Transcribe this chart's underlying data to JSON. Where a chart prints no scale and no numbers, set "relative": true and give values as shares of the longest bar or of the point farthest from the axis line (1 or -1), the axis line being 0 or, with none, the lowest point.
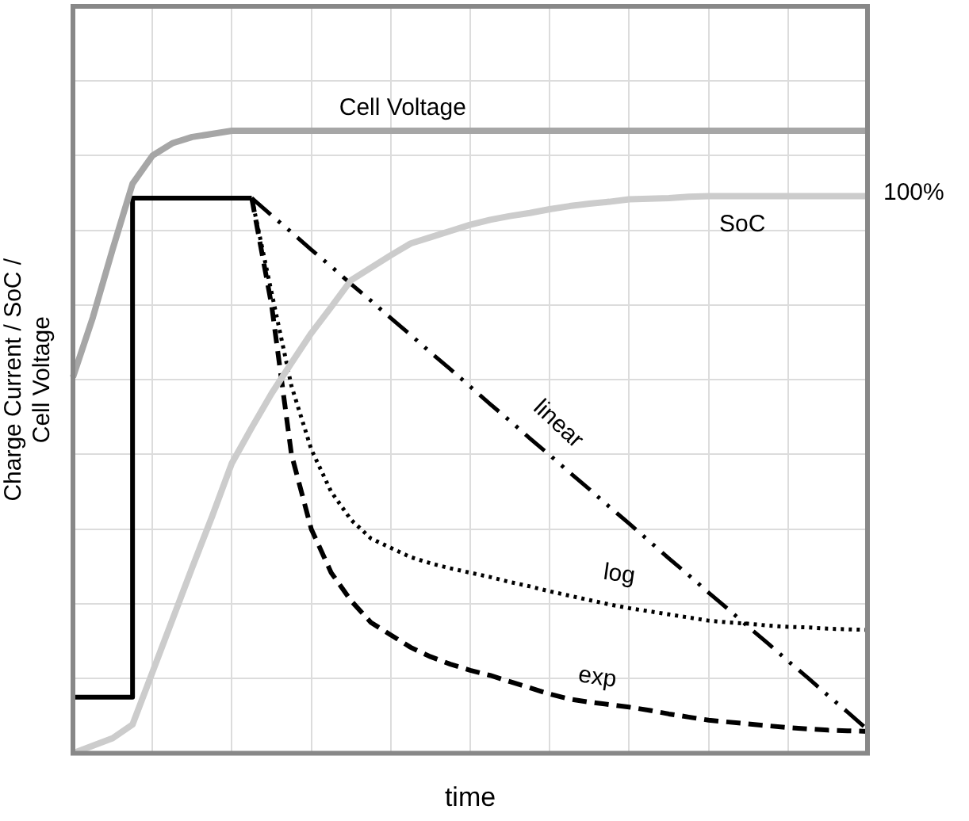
{
  "chart_data": {
    "type": "line",
    "xlabel": "time",
    "ylabel": "Charge Current / SoC / Cell Voltage",
    "relative": true,
    "categories": [
      null,
      null,
      null,
      null,
      null,
      null,
      null,
      null,
      null,
      null,
      null,
      null,
      null,
      null,
      null,
      null,
      null,
      null,
      null,
      null,
      null,
      null,
      null,
      null,
      null,
      null,
      null,
      null,
      null,
      null,
      null,
      null,
      null,
      null,
      null,
      null,
      null,
      null,
      null,
      null,
      null
    ],
    "grid": true,
    "legend": false,
    "marker": "none",
    "annotations": [
      "100%"
    ],
    "series": [
      {
        "name": "Cell Voltage",
        "color": "#a6a6a6",
        "line_style": "solid",
        "values": [
          0.604,
          0.7,
          0.81,
          0.915,
          0.96,
          0.98,
          0.99,
          0.995,
          1.0,
          1.0,
          1.0,
          1.0,
          1.0,
          1.0,
          1.0,
          1.0,
          1.0,
          1.0,
          1.0,
          1.0,
          1.0,
          1.0,
          1.0,
          1.0,
          1.0,
          1.0,
          1.0,
          1.0,
          1.0,
          1.0,
          1.0,
          1.0,
          1.0,
          1.0,
          1.0,
          1.0,
          1.0,
          1.0,
          1.0,
          1.0,
          1.0
        ]
      },
      {
        "name": "SoC",
        "color": "#cccccc",
        "line_style": "solid",
        "values": [
          0,
          0.012,
          0.024,
          0.046,
          0.13,
          0.214,
          0.298,
          0.38,
          0.466,
          0.523,
          0.578,
          0.627,
          0.675,
          0.717,
          0.76,
          0.78,
          0.8,
          0.819,
          0.829,
          0.839,
          0.849,
          0.857,
          0.863,
          0.868,
          0.874,
          0.879,
          0.883,
          0.886,
          0.89,
          0.891,
          0.892,
          0.894,
          0.895,
          0.895,
          0.895,
          0.895,
          0.895,
          0.895,
          0.895,
          0.895,
          0.895
        ]
      },
      {
        "type": "step",
        "color": "#000000",
        "line_style": "solid",
        "values": [
          0.09,
          0.09,
          0.09,
          0.892,
          0.892,
          0.892,
          0.892,
          0.892,
          0.892,
          0.892,
          null,
          null,
          null,
          null,
          null,
          null,
          null,
          null,
          null,
          null,
          null,
          null,
          null,
          null,
          null,
          null,
          null,
          null,
          null,
          null,
          null,
          null,
          null,
          null,
          null,
          null,
          null,
          null,
          null,
          null,
          null
        ]
      },
      {
        "name": "linear",
        "color": "#000000",
        "line_style": "dashdot",
        "values": [
          null,
          null,
          null,
          null,
          null,
          null,
          null,
          null,
          null,
          0.892,
          0.864,
          0.837,
          0.809,
          0.782,
          0.754,
          0.727,
          0.699,
          0.672,
          0.644,
          0.617,
          0.589,
          0.561,
          0.534,
          0.506,
          0.479,
          0.451,
          0.424,
          0.396,
          0.369,
          0.341,
          0.313,
          0.286,
          0.258,
          0.231,
          0.203,
          0.176,
          0.148,
          0.121,
          0.093,
          0.066,
          0.038
        ]
      },
      {
        "name": "log",
        "color": "#000000",
        "line_style": "dotted",
        "values": [
          null,
          null,
          null,
          null,
          null,
          null,
          null,
          null,
          null,
          0.892,
          0.74,
          0.59,
          0.488,
          0.42,
          0.375,
          0.345,
          0.33,
          0.315,
          0.305,
          0.297,
          0.29,
          0.283,
          0.275,
          0.268,
          0.26,
          0.253,
          0.246,
          0.239,
          0.233,
          0.228,
          0.223,
          0.218,
          0.213,
          0.21,
          0.208,
          0.205,
          0.203,
          0.202,
          0.2,
          0.199,
          0.198
        ]
      },
      {
        "name": "exp",
        "color": "#000000",
        "line_style": "dashed",
        "values": [
          null,
          null,
          null,
          null,
          null,
          null,
          null,
          null,
          null,
          0.892,
          0.72,
          0.48,
          0.36,
          0.29,
          0.245,
          0.21,
          0.19,
          0.17,
          0.155,
          0.143,
          0.133,
          0.125,
          0.115,
          0.105,
          0.095,
          0.087,
          0.082,
          0.078,
          0.074,
          0.069,
          0.063,
          0.058,
          0.053,
          0.05,
          0.047,
          0.044,
          0.041,
          0.039,
          0.037,
          0.036,
          0.035
        ]
      }
    ]
  }
}
